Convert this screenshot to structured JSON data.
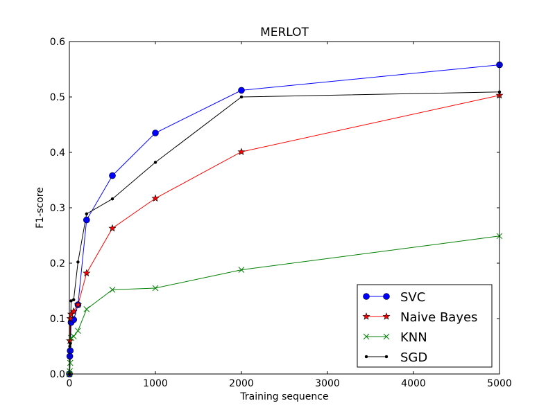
{
  "chart_data": {
    "type": "line",
    "title": "MERLOT",
    "xlabel": "Training sequence",
    "ylabel": "F1-score",
    "xlim": [
      0,
      5000
    ],
    "ylim": [
      0,
      0.6
    ],
    "xticks": [
      0,
      1000,
      2000,
      3000,
      4000,
      5000
    ],
    "xtick_labels": [
      "0",
      "1000",
      "2000",
      "3000",
      "4000",
      "5000"
    ],
    "yticks": [
      0.0,
      0.1,
      0.2,
      0.3,
      0.4,
      0.5,
      0.6
    ],
    "ytick_labels": [
      "0.0",
      "0.1",
      "0.2",
      "0.3",
      "0.4",
      "0.5",
      "0.6"
    ],
    "grid": false,
    "legend_position": "lower-right",
    "x": [
      1,
      5,
      10,
      20,
      50,
      100,
      200,
      500,
      1000,
      2000,
      5000
    ],
    "series": [
      {
        "name": "SVC",
        "color": "#0000ff",
        "marker": "circle",
        "values": [
          0.0,
          0.032,
          0.042,
          0.093,
          0.098,
          0.125,
          0.278,
          0.358,
          0.435,
          0.512,
          0.558
        ]
      },
      {
        "name": "Naive Bayes",
        "color": "#ff0000",
        "marker": "star",
        "values": [
          0.0,
          0.06,
          0.1,
          0.108,
          0.113,
          0.125,
          0.182,
          0.263,
          0.317,
          0.401,
          0.503
        ]
      },
      {
        "name": "KNN",
        "color": "#008000",
        "marker": "x",
        "values": [
          0.0,
          0.005,
          0.02,
          0.065,
          0.068,
          0.078,
          0.117,
          0.152,
          0.155,
          0.188,
          0.249
        ]
      },
      {
        "name": "SGD",
        "color": "#000000",
        "marker": "dot",
        "values": [
          0.0,
          0.05,
          0.055,
          0.132,
          0.134,
          0.202,
          0.289,
          0.316,
          0.382,
          0.5,
          0.509
        ]
      }
    ]
  }
}
